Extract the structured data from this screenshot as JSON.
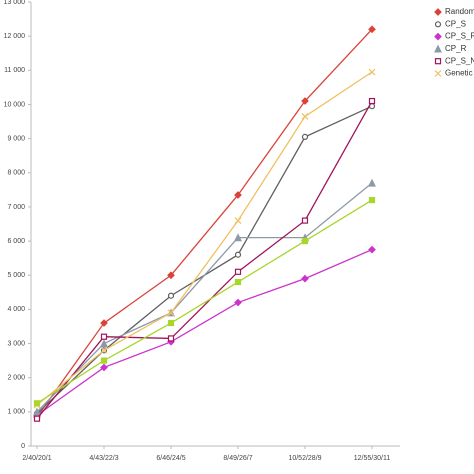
{
  "chart_data": {
    "type": "line",
    "categories": [
      "2/40/20/1",
      "4/43/22/3",
      "6/46/24/5",
      "8/49/26/7",
      "10/52/28/9",
      "12/55/30/11"
    ],
    "ylim": [
      0,
      13000
    ],
    "yticks": [
      0,
      {
        "value": 1000,
        "label": "1 000"
      },
      {
        "value": 2000,
        "label": "2 000"
      },
      {
        "value": 3000,
        "label": "3 000"
      },
      {
        "value": 4000,
        "label": "4 000"
      },
      {
        "value": 5000,
        "label": "5 000"
      },
      {
        "value": 6000,
        "label": "6 000"
      },
      {
        "value": 7000,
        "label": "7 000"
      },
      {
        "value": 8000,
        "label": "8 000"
      },
      {
        "value": 9000,
        "label": "9 000"
      },
      {
        "value": 10000,
        "label": "10 000"
      },
      {
        "value": 11000,
        "label": "11 000"
      },
      {
        "value": 12000,
        "label": "12 000"
      },
      {
        "value": 13000,
        "label": "13 000"
      }
    ],
    "grid": false,
    "series": [
      {
        "name": "Random",
        "color": "#d9433a",
        "marker": "diamond",
        "values": [
          850,
          3600,
          5000,
          7350,
          10100,
          12200
        ]
      },
      {
        "name": "CP_S",
        "color": "#606060",
        "marker": "open-circle",
        "values": [
          950,
          2800,
          4400,
          5600,
          9050,
          9950
        ]
      },
      {
        "name": "CP_S_R",
        "color": "#cc33cc",
        "marker": "diamond",
        "values": [
          900,
          2300,
          3050,
          4200,
          4900,
          5750
        ]
      },
      {
        "name": "CP_R",
        "color": "#8c9aa8",
        "marker": "triangle",
        "values": [
          1000,
          3000,
          3900,
          6100,
          6100,
          7700
        ]
      },
      {
        "name": "CP_S_N",
        "color": "#a0155a",
        "marker": "open-square",
        "values": [
          800,
          3200,
          3150,
          5100,
          6600,
          10100
        ]
      },
      {
        "name": "Genetic",
        "color": "#f0c060",
        "marker": "x",
        "values": [
          1200,
          2800,
          3900,
          6600,
          9650,
          10950
        ]
      },
      {
        "color": "#a8d62a",
        "marker": "square",
        "values": [
          1250,
          2500,
          3600,
          4800,
          6000,
          7200
        ]
      }
    ]
  }
}
